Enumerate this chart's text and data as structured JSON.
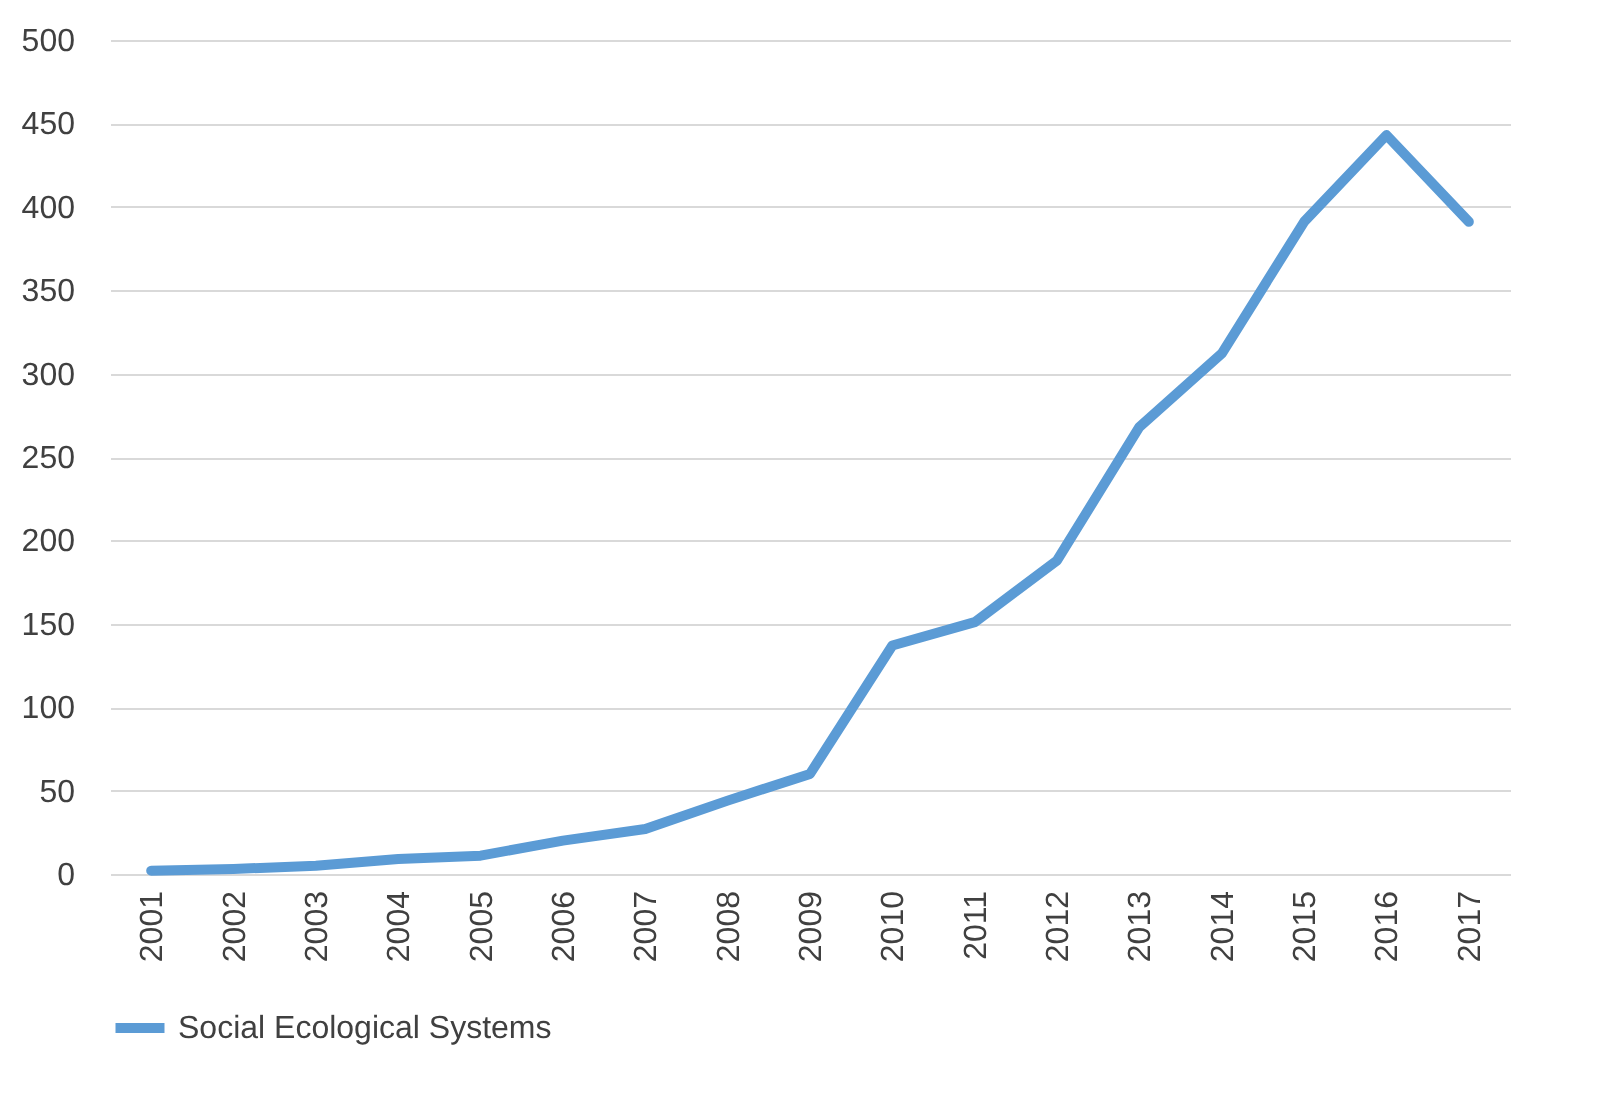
{
  "chart_data": {
    "type": "line",
    "categories": [
      "2001",
      "2002",
      "2003",
      "2004",
      "2005",
      "2006",
      "2007",
      "2008",
      "2009",
      "2010",
      "2011",
      "2012",
      "2013",
      "2014",
      "2015",
      "2016",
      "2017"
    ],
    "series": [
      {
        "name": "Social Ecological Systems",
        "color": "#5b9bd5",
        "values": [
          2,
          3,
          5,
          9,
          11,
          20,
          27,
          44,
          60,
          137,
          151,
          188,
          268,
          312,
          391,
          443,
          391
        ]
      }
    ],
    "ylim": [
      0,
      500
    ],
    "yticks": [
      0,
      50,
      100,
      150,
      200,
      250,
      300,
      350,
      400,
      450,
      500
    ],
    "grid": "y",
    "legend": "bottom"
  }
}
